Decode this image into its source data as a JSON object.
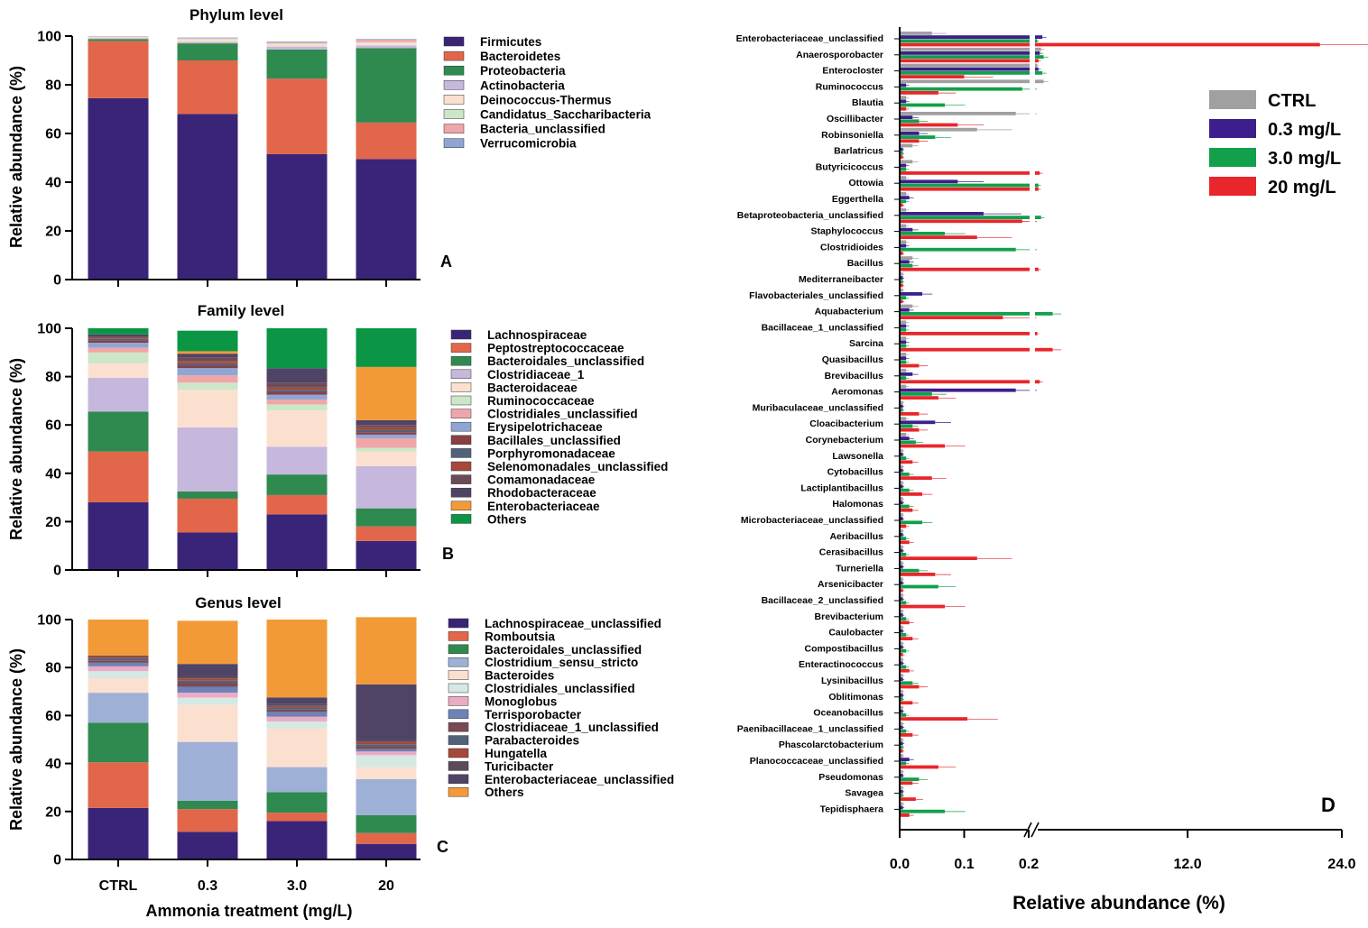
{
  "chart_data": [
    {
      "type": "bar",
      "stacked": true,
      "panel": "A",
      "title": "Phylum level",
      "ylabel": "Relative abundance (%)",
      "xlabel": "",
      "ylim": [
        0,
        100
      ],
      "yticks": [
        "0",
        "20",
        "40",
        "60",
        "80",
        "100"
      ],
      "categories": [
        "CTRL",
        "0.3",
        "3.0",
        "20"
      ],
      "series": [
        {
          "name": "Firmicutes",
          "color": "#3a2478",
          "values": [
            74.5,
            68,
            51.5,
            49.5
          ]
        },
        {
          "name": "Bacteroidetes",
          "color": "#e2674a",
          "values": [
            23.5,
            22,
            31,
            15
          ]
        },
        {
          "name": "Proteobacteria",
          "color": "#2f8a50",
          "values": [
            0.8,
            7,
            12,
            30.5
          ]
        },
        {
          "name": "Actinobacteria",
          "color": "#c6b8dc",
          "values": [
            0.4,
            0.6,
            1.2,
            1.2
          ]
        },
        {
          "name": "Deinococcus-Thermus",
          "color": "#fbe0d0",
          "values": [
            0.3,
            0.8,
            0.8,
            1
          ]
        },
        {
          "name": "Candidatus_Saccharibacteria",
          "color": "#cce6c8",
          "values": [
            0.2,
            0.5,
            0.5,
            0.3
          ]
        },
        {
          "name": "Bacteria_unclassified",
          "color": "#f0a6a8",
          "values": [
            0.2,
            0.3,
            0.5,
            1
          ]
        },
        {
          "name": "Verrucomicrobia",
          "color": "#8fa6d4",
          "values": [
            0.1,
            0.2,
            0.3,
            0.3
          ]
        }
      ]
    },
    {
      "type": "bar",
      "stacked": true,
      "panel": "B",
      "title": "Family level",
      "ylabel": "Relative abundance (%)",
      "xlabel": "",
      "ylim": [
        0,
        100
      ],
      "yticks": [
        "0",
        "20",
        "40",
        "60",
        "80",
        "100"
      ],
      "categories": [
        "CTRL",
        "0.3",
        "3.0",
        "20"
      ],
      "series": [
        {
          "name": "Lachnospiraceae",
          "color": "#3a2478",
          "values": [
            28,
            15.5,
            23,
            12
          ]
        },
        {
          "name": "Peptostreptococcaceae",
          "color": "#e2674a",
          "values": [
            21,
            14,
            8,
            6
          ]
        },
        {
          "name": "Bacteroidales_unclassified",
          "color": "#2f8a50",
          "values": [
            16.5,
            3,
            8.5,
            7.5
          ]
        },
        {
          "name": "Clostridiaceae_1",
          "color": "#c6b8dc",
          "values": [
            14,
            26.5,
            11.5,
            17.5
          ]
        },
        {
          "name": "Bacteroidaceae",
          "color": "#fbe0d0",
          "values": [
            6,
            15.5,
            15,
            6
          ]
        },
        {
          "name": "Ruminococcaceae",
          "color": "#cce6c8",
          "values": [
            4.5,
            3,
            2.5,
            1.5
          ]
        },
        {
          "name": "Clostridiales_unclassified",
          "color": "#f0a6a8",
          "values": [
            2,
            3,
            2,
            4
          ]
        },
        {
          "name": "Erysipelotrichaceae",
          "color": "#8fa6d4",
          "values": [
            2,
            3,
            2,
            1.5
          ]
        },
        {
          "name": "Bacillales_unclassified",
          "color": "#8a3f45",
          "values": [
            0.8,
            1,
            1,
            1
          ]
        },
        {
          "name": "Porphyromonadaceae",
          "color": "#526278",
          "values": [
            0.8,
            1,
            1,
            1
          ]
        },
        {
          "name": "Selenomonadales_unclassified",
          "color": "#a8473c",
          "values": [
            0.5,
            1,
            1,
            1
          ]
        },
        {
          "name": "Comamonadaceae",
          "color": "#6b4b57",
          "values": [
            0.5,
            1.5,
            2,
            1
          ]
        },
        {
          "name": "Rhodobacteraceae",
          "color": "#4f4466",
          "values": [
            0.9,
            1.5,
            6,
            2
          ]
        },
        {
          "name": "Enterobacteriaceae",
          "color": "#f39a38",
          "values": [
            0,
            1,
            0,
            22
          ]
        },
        {
          "name": "Others",
          "color": "#0a9645",
          "values": [
            2.5,
            8.5,
            16.5,
            16
          ]
        }
      ]
    },
    {
      "type": "bar",
      "stacked": true,
      "panel": "C",
      "title": "Genus level",
      "ylabel": "Relative abundance (%)",
      "xlabel": "Ammonia treatment (mg/L)",
      "ylim": [
        0,
        100
      ],
      "yticks": [
        "0",
        "20",
        "40",
        "60",
        "80",
        "100"
      ],
      "categories": [
        "CTRL",
        "0.3",
        "3.0",
        "20"
      ],
      "series": [
        {
          "name": "Lachnospiraceae_unclassified",
          "color": "#3a2478",
          "values": [
            21.5,
            11.5,
            16,
            6.5
          ]
        },
        {
          "name": "Romboutsia",
          "color": "#e2674a",
          "values": [
            19,
            9.5,
            3.5,
            4.5
          ]
        },
        {
          "name": "Bacteroidales_unclassified",
          "color": "#2f8a50",
          "values": [
            16.5,
            3.5,
            8.5,
            7.5
          ]
        },
        {
          "name": "Clostridium_sensu_stricto",
          "color": "#9fb0d6",
          "values": [
            12.5,
            24.5,
            10.5,
            15
          ]
        },
        {
          "name": "Bacteroides",
          "color": "#fbe0d0",
          "values": [
            6,
            15.5,
            16,
            5
          ]
        },
        {
          "name": "Clostridiales_unclassified",
          "color": "#d5e8e4",
          "values": [
            3,
            3,
            3,
            5
          ]
        },
        {
          "name": "Monoglobus",
          "color": "#ecabc4",
          "values": [
            2,
            2,
            2,
            1.5
          ]
        },
        {
          "name": "Terrisporobacter",
          "color": "#6f82b8",
          "values": [
            1.5,
            2.5,
            2,
            1
          ]
        },
        {
          "name": "Clostridiaceae_1_unclassified",
          "color": "#7a4a52",
          "values": [
            1,
            1.5,
            1,
            1
          ]
        },
        {
          "name": "Parabacteroides",
          "color": "#526278",
          "values": [
            0.8,
            1,
            1,
            1
          ]
        },
        {
          "name": "Hungatella",
          "color": "#a8473c",
          "values": [
            0.7,
            1,
            0.5,
            1
          ]
        },
        {
          "name": "Turicibacter",
          "color": "#5a4a5a",
          "values": [
            0.5,
            1,
            1,
            1
          ]
        },
        {
          "name": "Enterobacteriaceae_unclassified",
          "color": "#4f4466",
          "values": [
            0,
            5,
            2.5,
            23
          ]
        },
        {
          "name": "Others",
          "color": "#f39a38",
          "values": [
            15,
            18,
            32.5,
            28
          ]
        }
      ]
    },
    {
      "type": "bar",
      "orientation": "horizontal",
      "panel": "D",
      "xlabel": "Relative abundance (%)",
      "xlim_lower": [
        0,
        0.2
      ],
      "xlim_upper": [
        0.2,
        24
      ],
      "xticks": [
        "0.0",
        "0.1",
        "0.2",
        "12.0",
        "24.0"
      ],
      "series_names": [
        "CTRL",
        "0.3 mg/L",
        "3.0 mg/L",
        "20 mg/L"
      ],
      "series_colors": [
        "#a0a0a0",
        "#3c1f8c",
        "#12a04a",
        "#e8262b"
      ],
      "genera": [
        "Enterobacteriaceae_unclassified",
        "Anaerosporobacter",
        "Enterocloster",
        "Ruminococcus",
        "Blautia",
        "Oscillibacter",
        "Robinsoniella",
        "Barlatricus",
        "Butyricicoccus",
        "Ottowia",
        "Eggerthella",
        "Betaproteobacteria_unclassified",
        "Staphylococcus",
        "Clostridioides",
        "Bacillus",
        "Mediterraneibacter",
        "Flavobacteriales_unclassified",
        "Aquabacterium",
        "Bacillaceae_1_unclassified",
        "Sarcina",
        "Quasibacillus",
        "Brevibacillus",
        "Aeromonas",
        "Muribaculaceae_unclassified",
        "Cloacibacterium",
        "Corynebacterium",
        "Lawsonella",
        "Cytobacillus",
        "Lactiplantibacillus",
        "Halomonas",
        "Microbacteriaceae_unclassified",
        "Aeribacillus",
        "Cerasibacillus",
        "Turneriella",
        "Arsenicibacter",
        "Bacillaceae_2_unclassified",
        "Brevibacterium",
        "Caulobacter",
        "Compostibacillus",
        "Enteractinococcus",
        "Lysinibacillus",
        "Oblitimonas",
        "Oceanobacillus",
        "Paenibacillaceae_1_unclassified",
        "Phascolarctobacterium",
        "Planococcaceae_unclassified",
        "Pseudomonas",
        "Savagea",
        "Tepidisphaera"
      ],
      "values": {
        "CTRL": [
          0.05,
          0.6,
          0.3,
          0.8,
          0.01,
          0.18,
          0.12,
          0.02,
          0.02,
          0.01,
          0.01,
          0.01,
          0.01,
          0.01,
          0.02,
          0.005,
          0.005,
          0.02,
          0.01,
          0.01,
          0.01,
          0.01,
          0.01,
          0.005,
          0.01,
          0.01,
          0.005,
          0.005,
          0.005,
          0.005,
          0.005,
          0.005,
          0.005,
          0.005,
          0.005,
          0.005,
          0.005,
          0.005,
          0.005,
          0.005,
          0.005,
          0.005,
          0.005,
          0.005,
          0.005,
          0.005,
          0.005,
          0.005,
          0.005
        ],
        "0.3 mg/L": [
          0.7,
          0.5,
          0.4,
          0.01,
          0.01,
          0.02,
          0.03,
          0.005,
          0.01,
          0.09,
          0.015,
          0.13,
          0.02,
          0.01,
          0.015,
          0.005,
          0.035,
          0.015,
          0.01,
          0.01,
          0.01,
          0.02,
          0.18,
          0.005,
          0.055,
          0.015,
          0.005,
          0.005,
          0.005,
          0.005,
          0.005,
          0.005,
          0.005,
          0.005,
          0.005,
          0.005,
          0.005,
          0.005,
          0.005,
          0.005,
          0.005,
          0.005,
          0.005,
          0.005,
          0.005,
          0.015,
          0.005,
          0.005,
          0.005
        ],
        "3.0 mg/L": [
          0.3,
          0.8,
          0.7,
          0.19,
          0.07,
          0.03,
          0.055,
          0.005,
          0.01,
          0.4,
          0.01,
          0.6,
          0.07,
          0.18,
          0.02,
          0.005,
          0.01,
          1.5,
          0.01,
          0.01,
          0.01,
          0.01,
          0.05,
          0.005,
          0.02,
          0.025,
          0.01,
          0.015,
          0.015,
          0.015,
          0.035,
          0.01,
          0.01,
          0.03,
          0.06,
          0.01,
          0.01,
          0.01,
          0.01,
          0.01,
          0.02,
          0.005,
          0.01,
          0.01,
          0.005,
          0.01,
          0.03,
          0.005,
          0.07
        ],
        "20 mg/L": [
          22.3,
          0.4,
          0.1,
          0.06,
          0.01,
          0.09,
          0.03,
          0.005,
          0.5,
          0.4,
          0.005,
          0.19,
          0.12,
          0.005,
          0.4,
          0.005,
          0.005,
          0.16,
          0.3,
          1.5,
          0.03,
          0.5,
          0.06,
          0.03,
          0.03,
          0.07,
          0.02,
          0.05,
          0.035,
          0.02,
          0.01,
          0.015,
          0.12,
          0.055,
          0.005,
          0.07,
          0.015,
          0.02,
          0.005,
          0.015,
          0.03,
          0.02,
          0.105,
          0.02,
          0.005,
          0.06,
          0.02,
          0.025,
          0.015
        ]
      }
    }
  ],
  "panel_letters": {
    "a": "A",
    "b": "B",
    "c": "C",
    "d": "D"
  }
}
